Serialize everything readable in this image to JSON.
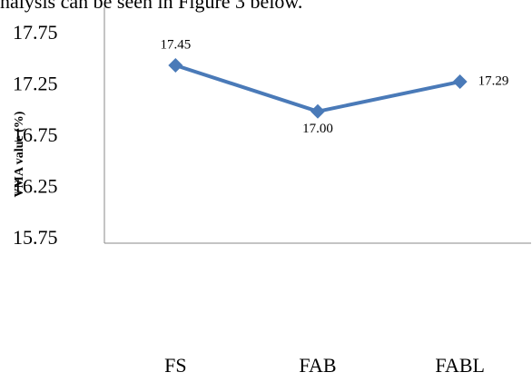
{
  "chart_data": {
    "type": "line",
    "annotations": [
      "nalysis can be seen in Figure 3 below."
    ],
    "y_label": "VMA value (%)",
    "categories": [
      "FS",
      "FAB",
      "FABL"
    ],
    "series": [
      {
        "name": "VMA",
        "color": "#4a7ab8",
        "values": [
          17.45,
          17,
          17.29
        ],
        "value_labels": [
          "17.45",
          "17.00",
          "17.29"
        ]
      }
    ],
    "ylim": [
      15.75,
      17.95
    ],
    "yticks": [
      17.75,
      17.25,
      16.75,
      16.25,
      15.75
    ]
  }
}
